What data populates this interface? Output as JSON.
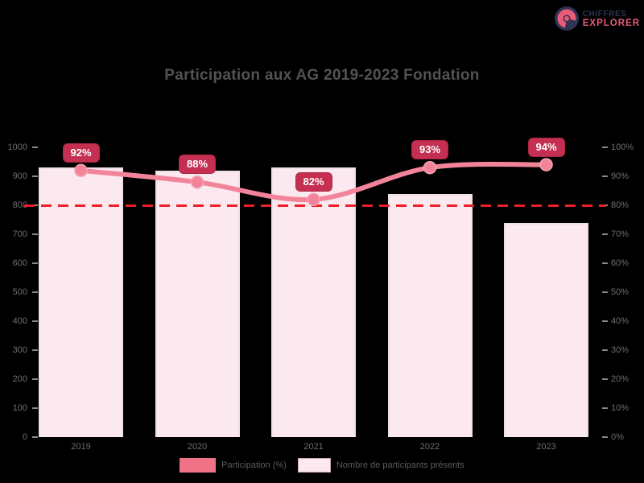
{
  "header": {
    "title": "Participation aux AG 2019-2023 Fondation",
    "logo": {
      "line1": "CHIFFRES",
      "line2": "EXPLORER"
    }
  },
  "chart_data": {
    "type": "bar",
    "title": "Participation aux AG 2019-2023 Fondation",
    "categories": [
      "2019",
      "2020",
      "2021",
      "2022",
      "2023"
    ],
    "series": [
      {
        "name": "Participation (%)",
        "chart_type": "line",
        "axis": "right",
        "values": [
          92,
          88,
          82,
          93,
          94
        ],
        "point_labels": [
          "92%",
          "88%",
          "82%",
          "93%",
          "94%"
        ],
        "color": "#f2849a"
      },
      {
        "name": "Nombre de participants présents",
        "chart_type": "bar",
        "axis": "left",
        "values": [
          930,
          920,
          930,
          840,
          740
        ],
        "color": "#fbe9ef",
        "border_color": "#efdfe6"
      }
    ],
    "left_axis": {
      "min": 0,
      "max": 1000,
      "ticks": [
        "1000",
        "900",
        "800",
        "700",
        "600",
        "500",
        "400",
        "300",
        "200",
        "100",
        "0"
      ]
    },
    "right_axis": {
      "min": 0,
      "max": 100,
      "ticks": [
        "100%",
        "90%",
        "80%",
        "70%",
        "60%",
        "50%",
        "40%",
        "30%",
        "20%",
        "10%",
        "0%"
      ]
    },
    "threshold_line": {
      "value": 80,
      "axis": "right",
      "color": "#f01e26",
      "style": "dashed"
    },
    "legend_position": "bottom",
    "grid": false
  },
  "legend": {
    "items": [
      {
        "label": "Participation (%)",
        "swatch_color": "#ef7287"
      },
      {
        "label": "Nombre de participants présents",
        "swatch_color": "#fbe9ef"
      }
    ]
  },
  "colors": {
    "background": "#000000",
    "title_text": "#525252",
    "axis_text": "#6e6e6e",
    "legend_text": "#5c5c5c",
    "badge_bg": "#c42f52",
    "badge_text": "#ffffff",
    "line": "#f2849a",
    "bar_fill": "#fbe9ef",
    "bar_border": "#efdfe6",
    "threshold": "#f01e26",
    "logo_navy": "#2e3352",
    "logo_pink": "#e85c78"
  }
}
